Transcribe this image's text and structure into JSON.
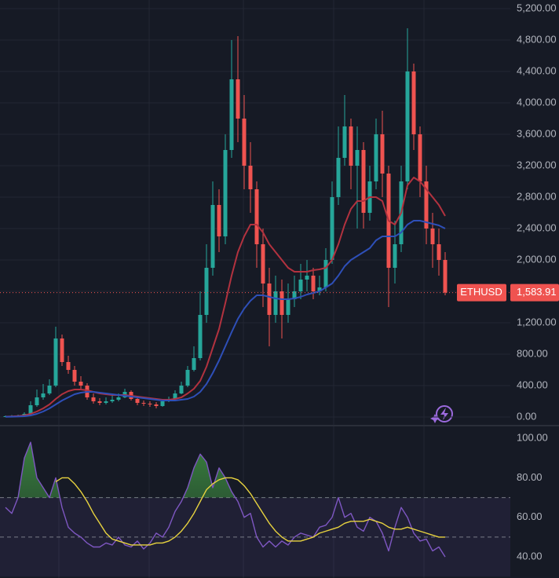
{
  "chart_data": [
    {
      "type": "candlestick",
      "symbol": "ETHUSD",
      "last_price": {
        "value": 1583.91,
        "label": "1,583.91"
      },
      "up_color": "#26a69a",
      "down_color": "#ef5350",
      "open": [
        5,
        10,
        12,
        15,
        40,
        150,
        250,
        300,
        400,
        1000,
        700,
        600,
        450,
        400,
        250,
        200,
        180,
        200,
        220,
        250,
        320,
        230,
        180,
        170,
        160,
        140,
        200,
        230,
        300,
        400,
        600,
        750,
        1300,
        1900,
        2700,
        2300,
        3400,
        4300,
        3800,
        3200,
        2900,
        2200,
        1700,
        1300,
        1600,
        1300,
        1500,
        1600,
        1750,
        1800,
        1600,
        1650,
        2000,
        2800,
        3300,
        3700,
        3200,
        3400,
        2600,
        3000,
        3600,
        3100,
        1900,
        2200,
        3000,
        4400,
        3600,
        3000,
        2400,
        2200,
        2000
      ],
      "high": [
        20,
        25,
        30,
        60,
        200,
        350,
        420,
        480,
        1150,
        1050,
        780,
        650,
        520,
        430,
        300,
        240,
        250,
        270,
        300,
        360,
        340,
        260,
        210,
        200,
        190,
        230,
        260,
        340,
        450,
        650,
        900,
        1600,
        2200,
        3000,
        2900,
        3600,
        4800,
        4850,
        4100,
        3500,
        3000,
        2400,
        1900,
        1800,
        1750,
        1700,
        1800,
        1950,
        2000,
        1900,
        1800,
        2150,
        3000,
        3700,
        4100,
        3800,
        3700,
        3500,
        3200,
        3800,
        3900,
        3200,
        2500,
        3200,
        4950,
        4500,
        3700,
        3200,
        2600,
        2400,
        2100
      ],
      "low": [
        0,
        5,
        8,
        12,
        35,
        130,
        220,
        280,
        380,
        650,
        550,
        400,
        350,
        220,
        170,
        150,
        160,
        180,
        200,
        240,
        210,
        150,
        140,
        130,
        110,
        130,
        190,
        220,
        290,
        380,
        580,
        720,
        1200,
        1800,
        2100,
        2200,
        3300,
        3500,
        2900,
        2600,
        1900,
        1400,
        900,
        1200,
        1000,
        1200,
        1400,
        1500,
        1600,
        1500,
        1550,
        1600,
        1950,
        2700,
        3200,
        2900,
        2400,
        2400,
        2500,
        2900,
        2800,
        1400,
        1700,
        2100,
        2900,
        3400,
        2800,
        2200,
        1900,
        1800,
        1550
      ],
      "close": [
        10,
        12,
        15,
        40,
        150,
        250,
        300,
        400,
        1000,
        700,
        600,
        450,
        400,
        250,
        200,
        180,
        200,
        220,
        250,
        320,
        230,
        180,
        170,
        160,
        140,
        200,
        230,
        300,
        400,
        600,
        750,
        1300,
        1900,
        2700,
        2300,
        3400,
        4300,
        3800,
        3200,
        2900,
        2200,
        1700,
        1300,
        1600,
        1300,
        1500,
        1600,
        1750,
        1800,
        1600,
        1650,
        2000,
        2800,
        3300,
        3700,
        3200,
        3400,
        2600,
        3000,
        3600,
        3100,
        1900,
        2200,
        3000,
        4400,
        3600,
        3000,
        2400,
        2200,
        2000,
        1583.91
      ],
      "lines": [
        {
          "color": "#b2323f",
          "values": [
            5,
            8,
            12,
            20,
            40,
            70,
            110,
            160,
            230,
            290,
            330,
            350,
            350,
            340,
            320,
            300,
            290,
            280,
            280,
            280,
            270,
            260,
            250,
            240,
            230,
            220,
            220,
            230,
            250,
            300,
            360,
            460,
            640,
            880,
            1120,
            1450,
            1800,
            2100,
            2300,
            2450,
            2450,
            2350,
            2200,
            2100,
            2000,
            1900,
            1850,
            1850,
            1850,
            1870,
            1880,
            1900,
            2000,
            2200,
            2450,
            2650,
            2750,
            2750,
            2800,
            2800,
            2750,
            2500,
            2450,
            2600,
            2950,
            3050,
            3000,
            2900,
            2800,
            2700,
            2560
          ]
        },
        {
          "color": "#2e4fb8",
          "values": [
            2,
            4,
            6,
            10,
            20,
            40,
            70,
            110,
            160,
            210,
            250,
            290,
            310,
            320,
            320,
            310,
            300,
            290,
            280,
            270,
            260,
            250,
            240,
            230,
            220,
            210,
            210,
            210,
            220,
            230,
            260,
            320,
            420,
            560,
            720,
            900,
            1080,
            1250,
            1380,
            1480,
            1550,
            1550,
            1530,
            1510,
            1500,
            1500,
            1510,
            1530,
            1560,
            1580,
            1600,
            1650,
            1700,
            1800,
            1920,
            2000,
            2050,
            2100,
            2150,
            2250,
            2300,
            2300,
            2300,
            2350,
            2450,
            2500,
            2500,
            2480,
            2460,
            2440,
            2400
          ]
        }
      ],
      "ylim": [
        -100,
        5310
      ],
      "yticks": [
        {
          "value": 0,
          "label": "0.00"
        },
        {
          "value": 400,
          "label": "400.00"
        },
        {
          "value": 800,
          "label": "800.00"
        },
        {
          "value": 1200,
          "label": "1,200.00"
        },
        {
          "value": 1600,
          "label": "1,600.00"
        },
        {
          "value": 2000,
          "label": "2,000.00"
        },
        {
          "value": 2400,
          "label": "2,400.00"
        },
        {
          "value": 2800,
          "label": "2,800.00"
        },
        {
          "value": 3200,
          "label": "3,200.00"
        },
        {
          "value": 3600,
          "label": "3,600.00"
        },
        {
          "value": 4000,
          "label": "4,000.00"
        },
        {
          "value": 4400,
          "label": "4,400.00"
        },
        {
          "value": 4800,
          "label": "4,800.00"
        },
        {
          "value": 5200,
          "label": "5,200.00"
        }
      ],
      "grid": true
    },
    {
      "type": "line",
      "series": [
        {
          "color": "#7e57c2",
          "values": [
            65,
            62,
            70,
            90,
            98,
            80,
            75,
            70,
            80,
            65,
            55,
            52,
            50,
            47,
            45,
            45,
            47,
            46,
            50,
            46,
            45,
            48,
            44,
            47,
            52,
            50,
            55,
            63,
            68,
            75,
            85,
            92,
            88,
            75,
            85,
            80,
            73,
            68,
            60,
            62,
            50,
            45,
            48,
            45,
            48,
            46,
            50,
            52,
            51,
            50,
            55,
            56,
            60,
            70,
            60,
            62,
            55,
            53,
            60,
            58,
            52,
            43,
            55,
            65,
            60,
            52,
            48,
            49,
            43,
            45,
            40
          ]
        },
        {
          "color": "#e8d33f",
          "values": [
            null,
            null,
            null,
            null,
            null,
            null,
            null,
            null,
            78,
            80,
            80,
            77,
            73,
            68,
            62,
            57,
            52,
            49,
            48,
            47,
            46,
            46,
            46,
            46,
            47,
            47,
            48,
            50,
            53,
            57,
            62,
            68,
            74,
            77,
            79,
            80,
            80,
            79,
            76,
            72,
            67,
            62,
            57,
            53,
            50,
            48,
            48,
            48,
            49,
            50,
            52,
            53,
            54,
            55,
            57,
            58,
            58,
            58,
            59,
            58,
            57,
            55,
            54,
            54,
            55,
            54,
            53,
            52,
            51,
            50,
            50
          ]
        }
      ],
      "overbought_color": "#3d8b40",
      "levels": [
        70,
        50
      ],
      "band": [
        30,
        70
      ],
      "ylim": [
        29.3,
        106
      ],
      "yticks": [
        {
          "value": 40,
          "label": "40.00"
        },
        {
          "value": 60,
          "label": "60.00"
        },
        {
          "value": 80,
          "label": "80.00"
        },
        {
          "value": 100,
          "label": "100.00"
        }
      ],
      "grid": true
    }
  ]
}
